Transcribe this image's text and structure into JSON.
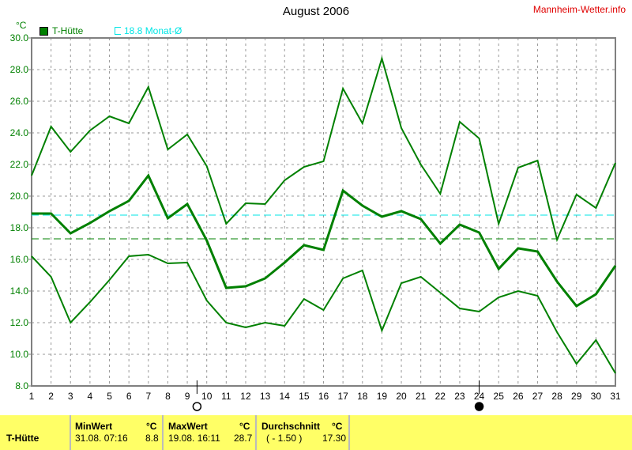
{
  "chart_data": {
    "type": "line",
    "title": "August 2006",
    "source_label": "Mannheim-Wetter.info",
    "ylabel": "°C",
    "ylim": [
      8.0,
      30.0
    ],
    "xlim": [
      1,
      31
    ],
    "yticks": [
      "8.0",
      "10.0",
      "12.0",
      "14.0",
      "16.0",
      "18.0",
      "20.0",
      "22.0",
      "24.0",
      "26.0",
      "28.0",
      "30.0"
    ],
    "x": [
      1,
      2,
      3,
      4,
      5,
      6,
      7,
      8,
      9,
      10,
      11,
      12,
      13,
      14,
      15,
      16,
      17,
      18,
      19,
      20,
      21,
      22,
      23,
      24,
      25,
      26,
      27,
      28,
      29,
      30,
      31
    ],
    "grid": true,
    "legend": [
      {
        "label": "T-Hütte",
        "color": "#008000"
      },
      {
        "label": "18.8 Monat-Ø",
        "color": "#00e5e5"
      }
    ],
    "series": [
      {
        "role": "max",
        "color": "#008000",
        "values": [
          21.3,
          24.4,
          22.8,
          24.15,
          25.05,
          24.6,
          26.9,
          22.95,
          23.9,
          21.9,
          18.25,
          19.55,
          19.5,
          21.0,
          21.85,
          22.2,
          26.8,
          24.6,
          28.7,
          24.3,
          22.0,
          20.15,
          24.7,
          23.65,
          18.25,
          21.8,
          22.25,
          17.25,
          20.1,
          19.25,
          22.1
        ]
      },
      {
        "role": "avg",
        "color": "#008000",
        "values": [
          18.9,
          18.9,
          17.65,
          18.3,
          19.05,
          19.7,
          21.3,
          18.6,
          19.5,
          17.2,
          14.2,
          14.3,
          14.8,
          15.8,
          16.9,
          16.6,
          20.35,
          19.4,
          18.7,
          19.05,
          18.55,
          17.0,
          18.2,
          17.7,
          15.4,
          16.7,
          16.5,
          14.6,
          13.05,
          13.8,
          15.6
        ]
      },
      {
        "role": "min",
        "color": "#008000",
        "values": [
          16.2,
          14.9,
          12.0,
          13.3,
          14.7,
          16.2,
          16.3,
          15.75,
          15.8,
          13.4,
          12.0,
          11.7,
          12.0,
          11.8,
          13.5,
          12.8,
          14.8,
          15.3,
          11.5,
          14.5,
          14.9,
          13.9,
          12.9,
          12.7,
          13.6,
          14.0,
          13.7,
          11.4,
          9.4,
          10.9,
          8.8
        ]
      }
    ],
    "reference_lines": [
      {
        "value": 18.8,
        "color": "#00e5e5"
      },
      {
        "value": 17.3,
        "color": "#008000"
      }
    ],
    "moon_phases": [
      {
        "day": 9.5,
        "phase": "full-moon"
      },
      {
        "day": 24,
        "phase": "new-moon"
      }
    ]
  },
  "table": {
    "row_label": "T-Hütte",
    "min": {
      "header": "MinWert",
      "unit": "°C",
      "time": "31.08.  07:16",
      "value": "8.8"
    },
    "max": {
      "header": "MaxWert",
      "unit": "°C",
      "time": "19.08.  16:11",
      "value": "28.7"
    },
    "avg": {
      "header": "Durchschnitt",
      "unit": "°C",
      "deviation": "( - 1.50 )",
      "value": "17.30"
    }
  }
}
